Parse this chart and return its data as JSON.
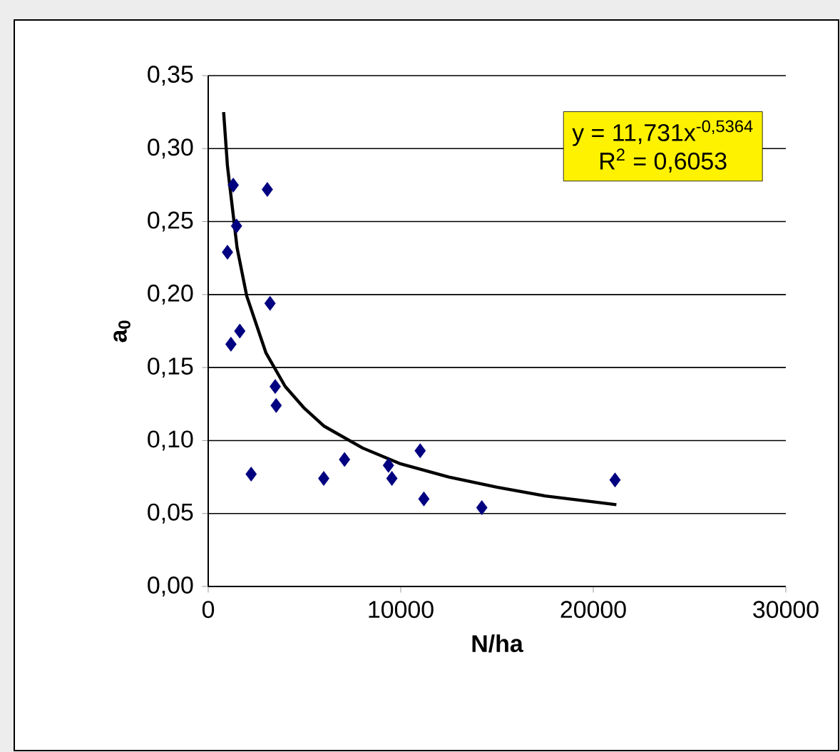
{
  "chart_data": {
    "type": "scatter",
    "xlabel": "N/ha",
    "ylabel": "**a$_{0}$**",
    "xlim": [
      0,
      30000
    ],
    "xticks": [
      0,
      10000,
      20000,
      30000
    ],
    "ylim": [
      0,
      0.35
    ],
    "yticks": [
      {
        "value": 0,
        "label": "0,00"
      },
      {
        "value": 0.05,
        "label": "0,05"
      },
      {
        "value": 0.1,
        "label": "0,10"
      },
      {
        "value": 0.15,
        "label": "0,15"
      },
      {
        "value": 0.2,
        "label": "0,20"
      },
      {
        "value": 0.25,
        "label": "0,25"
      },
      {
        "value": 0.3,
        "label": "0,30"
      },
      {
        "value": 0.35,
        "label": "0,35"
      }
    ],
    "grid": "y",
    "marker": "diamond",
    "series": [
      {
        "color": "#000080",
        "x": [
          1300,
          3070,
          1470,
          1000,
          3210,
          1640,
          1180,
          3480,
          3530,
          2230,
          6000,
          7080,
          9360,
          9540,
          11010,
          11200,
          14210,
          21130
        ],
        "values": [
          0.275,
          0.272,
          0.247,
          0.229,
          0.194,
          0.175,
          0.166,
          0.137,
          0.124,
          0.077,
          0.074,
          0.087,
          0.083,
          0.074,
          0.093,
          0.06,
          0.054,
          0.073
        ]
      },
      {
        "type": "line",
        "color": "#000000",
        "marker": "none",
        "line_style": "solid",
        "x": [
          800,
          1000,
          1500,
          2000,
          3000,
          4000,
          5000,
          6000,
          8000,
          10000,
          12500,
          15000,
          17500,
          20000,
          21200
        ],
        "values": [
          0.325,
          0.288,
          0.232,
          0.199,
          0.16,
          0.137,
          0.122,
          0.11,
          0.095,
          0.084,
          0.075,
          0.068,
          0.062,
          0.058,
          0.056
        ]
      }
    ],
    "annotations": [
      "y = 11,731x$^{-0,5364}$",
      "R$^{2}$ = 0,6053"
    ]
  }
}
